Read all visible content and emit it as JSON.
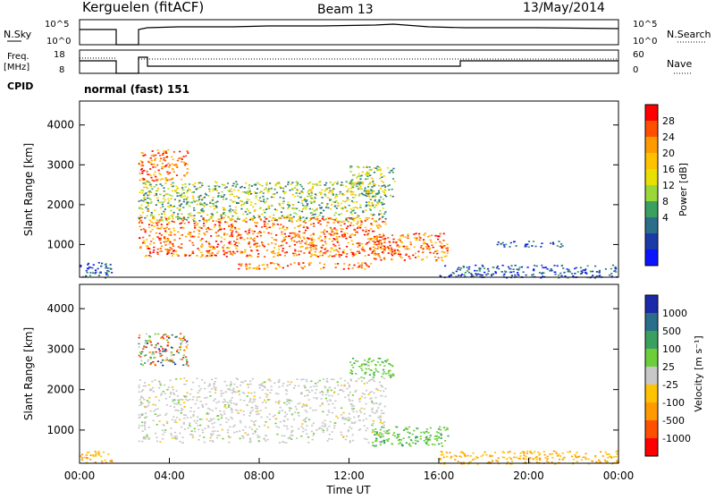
{
  "header": {
    "station": "Kerguelen (fitACF)",
    "beam": "Beam 13",
    "date": "13/May/2014"
  },
  "strip_labels": {
    "nsky": "N.Sky",
    "nsearch": "N.Search",
    "freq_line1": "Freq.",
    "freq_line2": "[MHz]",
    "nave": "Nave",
    "cpid": "CPID",
    "cpid_value": "normal (fast) 151",
    "nsky_ticks": [
      "10^5",
      "10^0"
    ],
    "nsearch_ticks": [
      "10^5",
      "10^0"
    ],
    "freq_ticks": [
      "18",
      "8"
    ],
    "nave_ticks": [
      "60",
      "0"
    ]
  },
  "chart_data": [
    {
      "type": "heatmap",
      "panel": "power",
      "xlabel": "",
      "ylabel": "Slant Range [km]",
      "xlim": [
        0,
        24
      ],
      "ylim": [
        180,
        4600
      ],
      "yticks": [
        "1000",
        "2000",
        "3000",
        "4000"
      ],
      "colorbar": {
        "label": "Power [dB]",
        "ticks": [
          "28",
          "24",
          "20",
          "16",
          "12",
          "8",
          "4"
        ],
        "colors": [
          "#ff0000",
          "#ff5000",
          "#ff9a00",
          "#ffc200",
          "#e8e000",
          "#9ad83a",
          "#3aa060",
          "#2a6e8a",
          "#1a3aa8",
          "#0a14ff"
        ]
      },
      "regions": [
        {
          "t0": 0.0,
          "t1": 1.4,
          "r0": 180,
          "r1": 600,
          "level": "low"
        },
        {
          "t0": 2.6,
          "t1": 13.6,
          "r0": 700,
          "r1": 1700,
          "level": "high"
        },
        {
          "t0": 2.6,
          "t1": 13.6,
          "r0": 1600,
          "r1": 2600,
          "level": "mid"
        },
        {
          "t0": 2.6,
          "t1": 4.8,
          "r0": 2600,
          "r1": 3400,
          "level": "high"
        },
        {
          "t0": 7.0,
          "t1": 13.0,
          "r0": 400,
          "r1": 560,
          "level": "high"
        },
        {
          "t0": 13.0,
          "t1": 16.4,
          "r0": 600,
          "r1": 1300,
          "level": "high"
        },
        {
          "t0": 12.0,
          "t1": 14.0,
          "r0": 2200,
          "r1": 3000,
          "level": "mid"
        },
        {
          "t0": 18.5,
          "t1": 21.5,
          "r0": 950,
          "r1": 1100,
          "level": "low"
        },
        {
          "t0": 16.0,
          "t1": 24.0,
          "r0": 180,
          "r1": 500,
          "level": "low"
        }
      ]
    },
    {
      "type": "heatmap",
      "panel": "velocity",
      "xlabel": "Time UT",
      "ylabel": "Slant Range [km]",
      "xlim": [
        0,
        24
      ],
      "ylim": [
        180,
        4600
      ],
      "xticks": [
        "00:00",
        "04:00",
        "08:00",
        "12:00",
        "16:00",
        "20:00",
        "00:00"
      ],
      "yticks": [
        "1000",
        "2000",
        "3000",
        "4000"
      ],
      "colorbar": {
        "label": "Velocity [m s⁻¹]",
        "ticks": [
          "1000",
          "500",
          "100",
          "25",
          "-25",
          "-100",
          "-500",
          "-1000"
        ],
        "colors": [
          "#1a2aa8",
          "#2a6e8a",
          "#3aa060",
          "#6ccf3a",
          "#c8c8c8",
          "#ffc200",
          "#ff9a00",
          "#ff5000",
          "#ff0000"
        ]
      },
      "regions": [
        {
          "t0": 0.0,
          "t1": 1.4,
          "r0": 180,
          "r1": 500,
          "level": "neg"
        },
        {
          "t0": 2.6,
          "t1": 13.6,
          "r0": 700,
          "r1": 2300,
          "level": "zero"
        },
        {
          "t0": 2.6,
          "t1": 4.8,
          "r0": 2600,
          "r1": 3400,
          "level": "mixed"
        },
        {
          "t0": 12.0,
          "t1": 14.0,
          "r0": 2300,
          "r1": 2800,
          "level": "pos"
        },
        {
          "t0": 13.0,
          "t1": 16.4,
          "r0": 600,
          "r1": 1100,
          "level": "pos"
        },
        {
          "t0": 16.0,
          "t1": 24.0,
          "r0": 180,
          "r1": 500,
          "level": "neg"
        }
      ]
    }
  ]
}
